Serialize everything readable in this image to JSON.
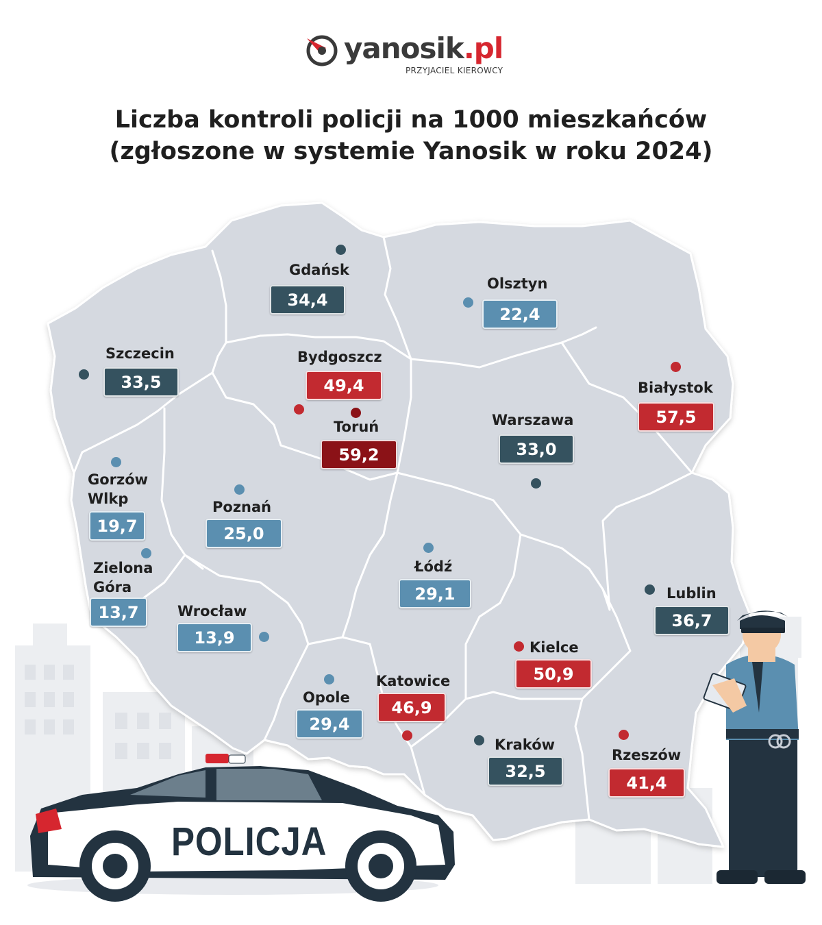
{
  "brand": {
    "name_main": "yanosik",
    "name_domain": ".pl",
    "tagline": "PRZYJACIEL KIEROWCY",
    "logo_icon": "compass-arrow-icon",
    "accent_color": "#d6262f"
  },
  "title": {
    "line1": "Liczba kontroli policji na 1000 mieszkańców",
    "line2": "(zgłoszone w systemie Yanosik w roku 2024)"
  },
  "map": {
    "region": "Polska",
    "fill_color": "#d5d9e0",
    "border_color": "#ffffff"
  },
  "legend_colors": {
    "dark": "#35525f",
    "blue": "#5b8fb0",
    "red": "#c22a30",
    "maroon": "#8b1217"
  },
  "cities": [
    {
      "name": "Gdańsk",
      "value": "34,4",
      "color": "dark"
    },
    {
      "name": "Olsztyn",
      "value": "22,4",
      "color": "blue"
    },
    {
      "name": "Szczecin",
      "value": "33,5",
      "color": "dark"
    },
    {
      "name": "Bydgoszcz",
      "value": "49,4",
      "color": "red"
    },
    {
      "name": "Toruń",
      "value": "59,2",
      "color": "maroon"
    },
    {
      "name": "Białystok",
      "value": "57,5",
      "color": "red"
    },
    {
      "name": "Warszawa",
      "value": "33,0",
      "color": "dark"
    },
    {
      "name_line1": "Gorzów",
      "name_line2": "Wlkp",
      "value": "19,7",
      "color": "blue"
    },
    {
      "name": "Poznań",
      "value": "25,0",
      "color": "blue"
    },
    {
      "name_line1": "Zielona",
      "name_line2": "Góra",
      "value": "13,7",
      "color": "blue"
    },
    {
      "name": "Łódź",
      "value": "29,1",
      "color": "blue"
    },
    {
      "name": "Lublin",
      "value": "36,7",
      "color": "dark"
    },
    {
      "name": "Wrocław",
      "value": "13,9",
      "color": "blue"
    },
    {
      "name": "Kielce",
      "value": "50,9",
      "color": "red"
    },
    {
      "name": "Opole",
      "value": "29,4",
      "color": "blue"
    },
    {
      "name": "Katowice",
      "value": "46,9",
      "color": "red"
    },
    {
      "name": "Kraków",
      "value": "32,5",
      "color": "dark"
    },
    {
      "name": "Rzeszów",
      "value": "41,4",
      "color": "red"
    }
  ],
  "illustration": {
    "car_text": "POLICJA",
    "car_icon": "police-car-icon",
    "officer_icon": "police-officer-icon",
    "background_icon": "city-buildings-icon"
  }
}
